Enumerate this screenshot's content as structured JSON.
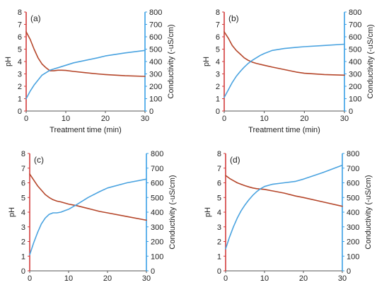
{
  "colors": {
    "ph_series": "#b5462a",
    "conductivity_series": "#4aa3e0",
    "left_axis": "#d23c3c",
    "right_axis": "#3aa0e6",
    "text": "#222222"
  },
  "chart_data": [
    {
      "type": "line",
      "panel_label": "(a)",
      "xlabel": "Treatment time (min)",
      "ylabel_left": "pH",
      "ylabel_right": "Conductivity (-uS/cm)",
      "xlim": [
        0,
        30
      ],
      "ylim_left": [
        0,
        8
      ],
      "ylim_right": [
        0,
        800
      ],
      "x_ticks": [
        0,
        10,
        20,
        30
      ],
      "y_ticks_left": [
        0,
        1,
        2,
        3,
        4,
        5,
        6,
        7,
        8
      ],
      "y_ticks_right": [
        0,
        100,
        200,
        300,
        400,
        500,
        600,
        700,
        800
      ],
      "series": [
        {
          "axis": "left",
          "color_key": "ph_series",
          "x": [
            0,
            1,
            2,
            3,
            4,
            5,
            6,
            7,
            8,
            9,
            10,
            12,
            15,
            18,
            20,
            25,
            30
          ],
          "y": [
            6.4,
            5.8,
            5.0,
            4.3,
            3.8,
            3.5,
            3.25,
            3.25,
            3.3,
            3.3,
            3.28,
            3.2,
            3.1,
            3.0,
            2.95,
            2.85,
            2.8
          ]
        },
        {
          "axis": "right",
          "color_key": "conductivity_series",
          "x": [
            0,
            1,
            2,
            3,
            4,
            5,
            6,
            7,
            8,
            10,
            12,
            15,
            18,
            20,
            25,
            30
          ],
          "y": [
            100,
            160,
            210,
            250,
            290,
            310,
            330,
            340,
            350,
            370,
            390,
            410,
            430,
            445,
            470,
            490
          ]
        }
      ]
    },
    {
      "type": "line",
      "panel_label": "(b)",
      "xlabel": "Treatment time (min)",
      "ylabel_left": "pH",
      "ylabel_right": "Conductivity (-uS/cm)",
      "xlim": [
        0,
        30
      ],
      "ylim_left": [
        0,
        8
      ],
      "ylim_right": [
        0,
        800
      ],
      "x_ticks": [
        0,
        10,
        20,
        30
      ],
      "y_ticks_left": [
        0,
        1,
        2,
        3,
        4,
        5,
        6,
        7,
        8
      ],
      "y_ticks_right": [
        0,
        100,
        200,
        300,
        400,
        500,
        600,
        700,
        800
      ],
      "series": [
        {
          "axis": "left",
          "color_key": "ph_series",
          "x": [
            0,
            1,
            2,
            3,
            4,
            5,
            6,
            7,
            8,
            10,
            12,
            15,
            18,
            20,
            25,
            30
          ],
          "y": [
            6.4,
            5.9,
            5.3,
            4.9,
            4.6,
            4.3,
            4.1,
            3.95,
            3.85,
            3.7,
            3.55,
            3.35,
            3.15,
            3.05,
            2.95,
            2.9
          ]
        },
        {
          "axis": "right",
          "color_key": "conductivity_series",
          "x": [
            0,
            1,
            2,
            3,
            4,
            5,
            6,
            7,
            8,
            9,
            10,
            12,
            15,
            18,
            20,
            25,
            30
          ],
          "y": [
            110,
            170,
            230,
            280,
            320,
            355,
            385,
            410,
            430,
            450,
            465,
            490,
            505,
            515,
            520,
            530,
            540
          ]
        }
      ]
    },
    {
      "type": "line",
      "panel_label": "(c)",
      "xlabel": "Treatment time (min)",
      "ylabel_left": "pH",
      "ylabel_right": "Conductivity (-uS/cm)",
      "xlim": [
        0,
        30
      ],
      "ylim_left": [
        0,
        8
      ],
      "ylim_right": [
        0,
        800
      ],
      "x_ticks": [
        0,
        10,
        20,
        30
      ],
      "y_ticks_left": [
        0,
        1,
        2,
        3,
        4,
        5,
        6,
        7,
        8
      ],
      "y_ticks_right": [
        0,
        100,
        200,
        300,
        400,
        500,
        600,
        700,
        800
      ],
      "series": [
        {
          "axis": "left",
          "color_key": "ph_series",
          "x": [
            0,
            1,
            2,
            3,
            4,
            5,
            6,
            7,
            8,
            10,
            12,
            15,
            18,
            20,
            25,
            30
          ],
          "y": [
            6.6,
            6.2,
            5.8,
            5.5,
            5.2,
            5.0,
            4.85,
            4.75,
            4.7,
            4.55,
            4.45,
            4.25,
            4.05,
            3.95,
            3.7,
            3.45
          ]
        },
        {
          "axis": "right",
          "color_key": "conductivity_series",
          "x": [
            0,
            1,
            2,
            3,
            4,
            5,
            6,
            7,
            8,
            9,
            10,
            12,
            15,
            18,
            20,
            25,
            30
          ],
          "y": [
            110,
            190,
            260,
            320,
            360,
            385,
            395,
            395,
            400,
            410,
            420,
            450,
            500,
            540,
            565,
            600,
            625
          ]
        }
      ]
    },
    {
      "type": "line",
      "panel_label": "(d)",
      "xlabel": "Treatment time (min)",
      "ylabel_left": "pH",
      "ylabel_right": "Conductivity (-uS/cm)",
      "xlim": [
        0,
        30
      ],
      "ylim_left": [
        0,
        8
      ],
      "ylim_right": [
        0,
        800
      ],
      "x_ticks": [
        0,
        10,
        20,
        30
      ],
      "y_ticks_left": [
        0,
        1,
        2,
        3,
        4,
        5,
        6,
        7,
        8
      ],
      "y_ticks_right": [
        0,
        100,
        200,
        300,
        400,
        500,
        600,
        700,
        800
      ],
      "series": [
        {
          "axis": "left",
          "color_key": "ph_series",
          "x": [
            0,
            1,
            2,
            3,
            4,
            5,
            6,
            7,
            8,
            10,
            12,
            15,
            18,
            20,
            25,
            30
          ],
          "y": [
            6.5,
            6.3,
            6.15,
            6.0,
            5.9,
            5.8,
            5.72,
            5.65,
            5.6,
            5.55,
            5.45,
            5.3,
            5.1,
            5.0,
            4.7,
            4.4
          ]
        },
        {
          "axis": "right",
          "color_key": "conductivity_series",
          "x": [
            0,
            1,
            2,
            3,
            4,
            5,
            6,
            7,
            8,
            9,
            10,
            12,
            15,
            18,
            20,
            25,
            30
          ],
          "y": [
            150,
            230,
            300,
            360,
            410,
            450,
            485,
            515,
            540,
            560,
            575,
            590,
            600,
            610,
            625,
            670,
            720
          ]
        }
      ]
    }
  ]
}
